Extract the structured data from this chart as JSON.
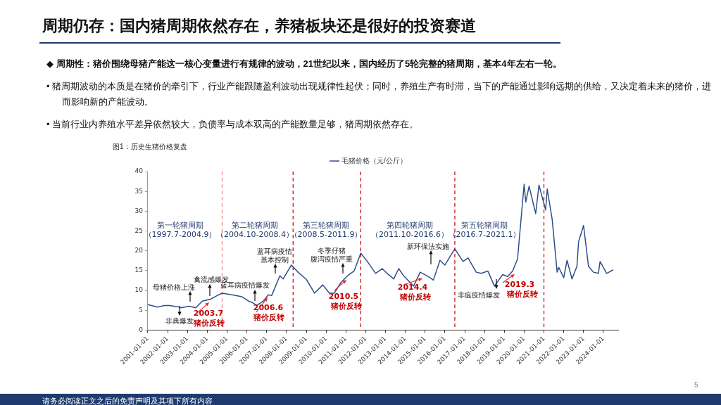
{
  "chart_data": {
    "type": "line",
    "title": "周期仍存：国内猪周期依然存在，养猪板块还是很好的投资赛道",
    "subtitle": "图1：历史生猪价格复盘",
    "x": [
      "2001-01",
      "2001-07",
      "2001-11",
      "2002-02",
      "2002-07",
      "2002-09",
      "2003-02",
      "2003-06",
      "2003-10",
      "2004-03",
      "2004-07",
      "2004-10",
      "2005-04",
      "2005-10",
      "2006-02",
      "2006-04",
      "2006-07",
      "2006-11",
      "2007-02",
      "2007-04",
      "2007-09",
      "2007-11",
      "2008-04",
      "2008-08",
      "2009-01",
      "2009-06",
      "2009-11",
      "2010-03",
      "2010-06",
      "2010-10",
      "2011-02",
      "2011-06",
      "2011-10",
      "2012-02",
      "2012-07",
      "2012-11",
      "2013-02",
      "2013-06",
      "2013-09",
      "2013-12",
      "2014-06",
      "2014-10",
      "2015-03",
      "2015-06",
      "2015-10",
      "2016-01",
      "2016-07",
      "2016-12",
      "2017-03",
      "2017-08",
      "2017-11",
      "2018-03",
      "2018-07",
      "2018-12",
      "2019-03",
      "2019-06",
      "2019-09",
      "2020-01",
      "2020-02",
      "2020-04",
      "2020-08",
      "2020-10",
      "2021-02",
      "2021-03",
      "2021-06",
      "2021-09",
      "2021-10",
      "2022-01",
      "2022-03",
      "2022-06",
      "2022-09",
      "2022-10",
      "2023-01",
      "2023-04",
      "2023-07",
      "2023-10",
      "2023-11",
      "2024-03",
      "2024-07"
    ],
    "series": [
      {
        "name": "毛猪价格（元/公斤）",
        "color": "#2e4f8a",
        "values": [
          6.4,
          5.8,
          6.2,
          6.2,
          5.9,
          5.6,
          6.0,
          5.6,
          7.3,
          7.8,
          8.7,
          9.3,
          8.9,
          8.4,
          7.3,
          7.0,
          6.2,
          7.3,
          8.9,
          8.7,
          13.7,
          12.9,
          16.4,
          14.6,
          12.8,
          9.3,
          11.4,
          9.3,
          9.3,
          12.0,
          13.7,
          14.9,
          19.4,
          17.3,
          14.3,
          15.5,
          14.3,
          12.9,
          15.5,
          13.7,
          11.1,
          14.6,
          13.5,
          12.6,
          17.6,
          16.4,
          20.5,
          17.3,
          18.2,
          14.6,
          14.3,
          14.9,
          11.1,
          14.0,
          13.5,
          14.9,
          17.9,
          36.8,
          32.3,
          36.3,
          29.4,
          36.6,
          30.3,
          35.6,
          27.9,
          14.6,
          15.8,
          13.2,
          17.6,
          12.9,
          16.1,
          22.3,
          26.4,
          16.1,
          14.6,
          14.3,
          17.3,
          14.3,
          15.2
        ]
      }
    ],
    "xlim": [
      "2001-01-01",
      "2024-10-01"
    ],
    "xticks": [
      "2001-01-01",
      "2002-01-01",
      "2003-01-01",
      "2004-01-01",
      "2005-01-01",
      "2006-01-01",
      "2007-01-01",
      "2008-01-01",
      "2009-01-01",
      "2010-01-01",
      "2011-01-01",
      "2012-01-01",
      "2013-01-01",
      "2014-01-01",
      "2015-01-01",
      "2016-01-01",
      "2017-01-01",
      "2018-01-01",
      "2019-01-01",
      "2020-01-01",
      "2021-01-01",
      "2022-01-01",
      "2023-01-01",
      "2024-01-01"
    ],
    "ylim": [
      0,
      40
    ],
    "yticks": [
      0,
      5,
      10,
      15,
      20,
      25,
      30,
      35,
      40
    ],
    "legend": "top",
    "marker": "none",
    "line_style": "solid",
    "ref_lines": [
      {
        "axis": "x",
        "value": "2004-10",
        "color": "#f08080",
        "line_style": "dashed"
      },
      {
        "axis": "x",
        "value": "2008-05",
        "color": "#c00000",
        "line_style": "dashed"
      },
      {
        "axis": "x",
        "value": "2011-10",
        "color": "#c00000",
        "line_style": "dashed"
      },
      {
        "axis": "x",
        "value": "2016-07",
        "color": "#c00000",
        "line_style": "dashed"
      },
      {
        "axis": "x",
        "value": "2021-01",
        "color": "#c00000",
        "line_style": "dashed"
      }
    ],
    "annotations": [
      "◆  周期性：猪价围绕母猪产能这一核心变量进行有规律的波动，21世纪以来，国内经历了5轮完整的猪周期，基本4年左右一轮。",
      "•  猪周期波动的本质是在猪价的牵引下，行业产能跟随盈利波动出现规律性起伏；同时，养殖生产有时滞，当下的产能通过影响远期的供给，又决定着未来的猪价，进而影响新的产能波动。",
      "•  当前行业内养殖水平差异依然较大，负债率与成本双高的产能数量足够，猪周期依然存在。",
      "请务必阅读正文之后的免责声明及其项下所有内容",
      "5",
      "第一轮猪周期",
      "（1997.7-2004.9）",
      "第二轮猪周期",
      "（2004.10-2008.4）",
      "第三轮猪周期",
      "（2008.5-2011.9）",
      "第四轮猪周期",
      "（2011.10-2016.6）",
      "第五轮猪周期",
      "（2016.7-2021.1）",
      "非典爆发",
      "母猪价格上涨",
      "禽流感爆发",
      "蓝耳病疫情爆发",
      "蓝耳病疫情",
      "基本控制",
      "冬季仔猪",
      "腹泻疫情严重",
      "新环保法实施",
      "非瘟疫情爆发",
      "2003.7",
      "猪价反转",
      "2006.6",
      "猪价反转",
      "2010.5",
      "猪价反转",
      "2014.4",
      "猪价反转",
      "2019.3",
      "猪价反转"
    ]
  }
}
